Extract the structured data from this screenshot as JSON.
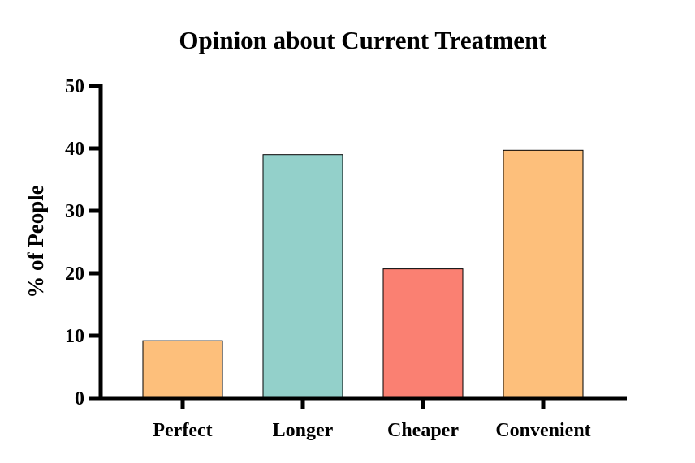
{
  "chart_data": {
    "type": "bar",
    "title": "Opinion about Current Treatment",
    "xlabel": "",
    "ylabel": "% of People",
    "categories": [
      "Perfect",
      "Longer",
      "Cheaper",
      "Convenient"
    ],
    "values": [
      9.2,
      39,
      20.7,
      39.7
    ],
    "colors": [
      "#FDBF7B",
      "#93D0CA",
      "#FA8072",
      "#FDBF7B"
    ],
    "ylim": [
      0,
      50
    ],
    "yticks": [
      "0",
      "10",
      "20",
      "30",
      "40",
      "50"
    ],
    "grid": false,
    "legend": "none"
  }
}
